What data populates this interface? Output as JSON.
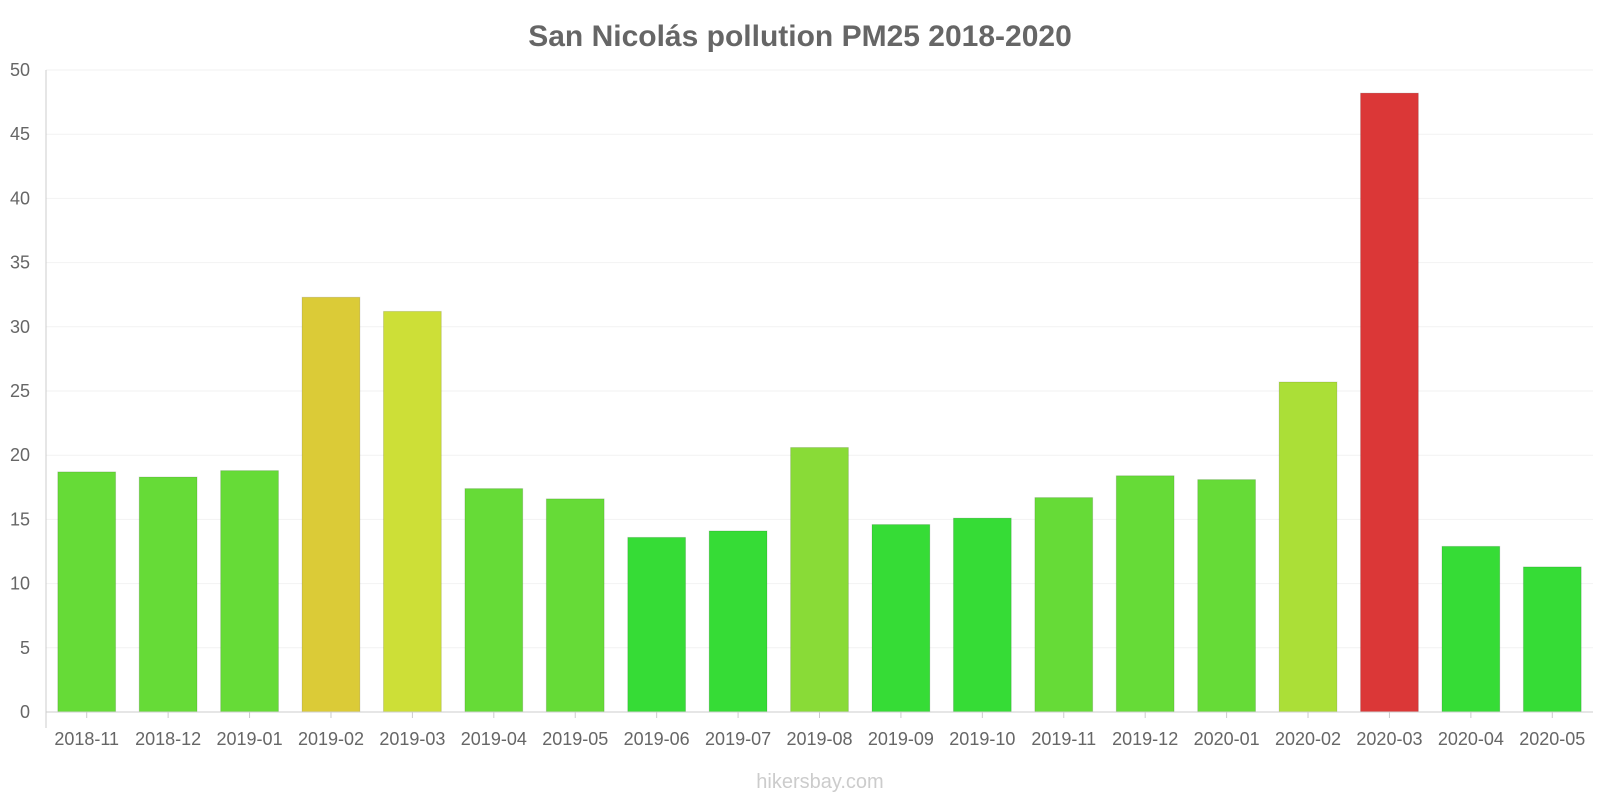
{
  "chart_data": {
    "type": "bar",
    "title": "San Nicolás pollution PM25 2018-2020",
    "xlabel": "",
    "ylabel": "",
    "ylim": [
      0,
      50
    ],
    "yticks": [
      0,
      5,
      10,
      15,
      20,
      25,
      30,
      35,
      40,
      45,
      50
    ],
    "grid": true,
    "legend": "none",
    "categories": [
      "2018-11",
      "2018-12",
      "2019-01",
      "2019-02",
      "2019-03",
      "2019-04",
      "2019-05",
      "2019-06",
      "2019-07",
      "2019-08",
      "2019-09",
      "2019-10",
      "2019-11",
      "2019-12",
      "2020-01",
      "2020-02",
      "2020-03",
      "2020-04",
      "2020-05"
    ],
    "values": [
      18.7,
      18.3,
      18.8,
      32.3,
      31.2,
      17.4,
      16.6,
      13.6,
      14.1,
      20.6,
      14.6,
      15.1,
      16.7,
      18.4,
      18.1,
      25.7,
      48.2,
      12.9,
      11.3
    ],
    "colors": [
      "#66db37",
      "#66db37",
      "#66db37",
      "#dbcb37",
      "#cddf37",
      "#66db37",
      "#66db37",
      "#36dc36",
      "#36dc36",
      "#89db37",
      "#36dc36",
      "#36dc36",
      "#66db37",
      "#66db37",
      "#66db37",
      "#abdf37",
      "#db3737",
      "#36dc36",
      "#36dc36"
    ]
  },
  "credit": "hikersbay.com"
}
